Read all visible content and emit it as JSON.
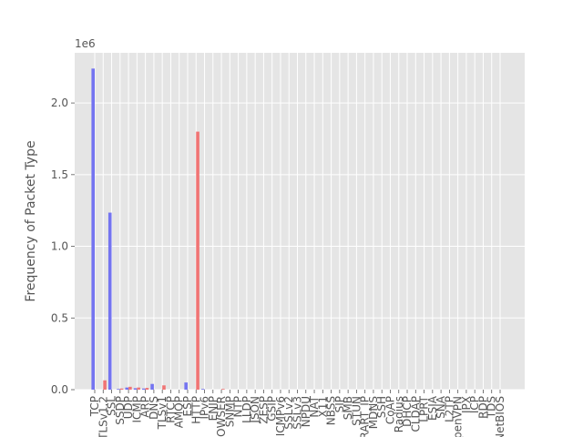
{
  "chart_data": {
    "type": "bar",
    "y_label": "Frequency of Packet Type",
    "y_offset_label": "1e6",
    "categories": [
      "TCP",
      "TLSv1.2",
      "SSL",
      "SSDP",
      "UDP",
      "ICMP",
      "ARP",
      "DNS",
      "TLSv1",
      "RTCP",
      "AMQP",
      "ESP",
      "HTTP",
      "IPv6",
      "ENIP",
      "BROWSER",
      "SNMP",
      "NTP",
      "LLDP",
      "JSON",
      "ZESP",
      "GSIP",
      "ICMPv6",
      "SSLv2",
      "SSLv3",
      "NPDU",
      "NAT",
      "X11",
      "NBSS",
      "SIP",
      "SMB",
      "STUN",
      "RART_IP",
      "MDNS",
      "SSH",
      "CoAP",
      "Radius",
      "DHCP",
      "CLDAP",
      "LPRT",
      "ESIA",
      "SNA",
      "L2TP",
      "OpenVPN",
      "IPX",
      "ICP",
      "RDP",
      "TDS",
      "NetBIOS"
    ],
    "series": [
      {
        "color": "#7474f0",
        "values": [
          2240000,
          0,
          1235000,
          5000,
          15000,
          10000,
          8000,
          40000,
          0,
          0,
          0,
          50000,
          0,
          5000,
          0,
          0,
          0,
          0,
          0,
          0,
          0,
          0,
          0,
          0,
          0,
          0,
          0,
          0,
          0,
          0,
          0,
          0,
          0,
          0,
          0,
          0,
          0,
          0,
          0,
          0,
          0,
          0,
          0,
          0,
          0,
          0,
          0,
          0,
          0
        ]
      },
      {
        "color": "#f07474",
        "values": [
          0,
          65000,
          0,
          8000,
          20000,
          15000,
          12000,
          0,
          30000,
          0,
          0,
          0,
          1800000,
          0,
          0,
          5000,
          0,
          0,
          0,
          0,
          0,
          0,
          0,
          0,
          0,
          0,
          0,
          0,
          0,
          0,
          0,
          0,
          0,
          0,
          0,
          0,
          0,
          0,
          0,
          0,
          0,
          0,
          0,
          0,
          0,
          0,
          0,
          0,
          0
        ]
      }
    ],
    "ylim": [
      0,
      2350000
    ],
    "yticks": [
      {
        "value": 0,
        "label": "0.0"
      },
      {
        "value": 500000,
        "label": "0.5"
      },
      {
        "value": 1000000,
        "label": "1.0"
      },
      {
        "value": 1500000,
        "label": "1.5"
      },
      {
        "value": 2000000,
        "label": "2.0"
      }
    ],
    "grid": true
  }
}
